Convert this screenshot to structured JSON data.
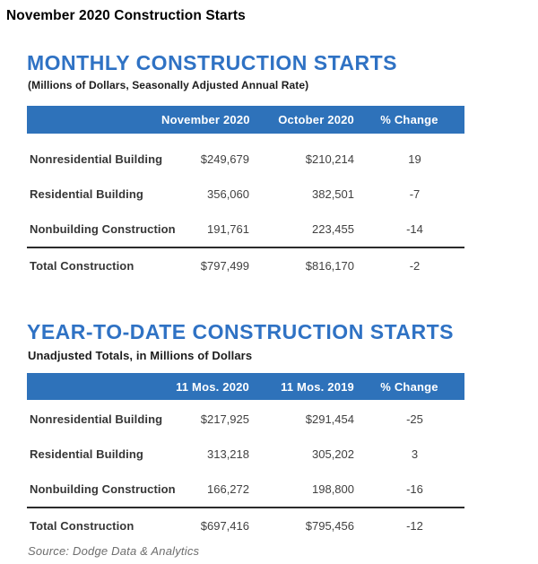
{
  "page": {
    "title": "November 2020 Construction Starts",
    "source": "Source: Dodge Data & Analytics"
  },
  "colors": {
    "heading_blue": "#2f72c4",
    "band_blue": "#2e72ba",
    "body_text": "#3f3f3f"
  },
  "sections": [
    {
      "heading": "MONTHLY CONSTRUCTION STARTS",
      "subheading": "(Millions of Dollars, Seasonally Adjusted Annual Rate)",
      "table": {
        "columns": [
          "",
          "November 2020",
          "October 2020",
          "% Change"
        ],
        "rows": [
          {
            "label": "Nonresidential Building",
            "current": "$249,679",
            "prior": "$210,214",
            "change": "19"
          },
          {
            "label": "Residential Building",
            "current": "356,060",
            "prior": "382,501",
            "change": "-7"
          },
          {
            "label": "Nonbuilding Construction",
            "current": "191,761",
            "prior": "223,455",
            "change": "-14"
          }
        ],
        "total": {
          "label": "Total Construction",
          "current": "$797,499",
          "prior": "$816,170",
          "change": "-2"
        }
      }
    },
    {
      "heading": "YEAR-TO-DATE CONSTRUCTION STARTS",
      "subheading": "Unadjusted Totals, in Millions of Dollars",
      "table": {
        "columns": [
          "",
          "11 Mos. 2020",
          "11 Mos. 2019",
          "% Change"
        ],
        "rows": [
          {
            "label": "Nonresidential Building",
            "current": "$217,925",
            "prior": "$291,454",
            "change": "-25"
          },
          {
            "label": "Residential Building",
            "current": "313,218",
            "prior": "305,202",
            "change": "3"
          },
          {
            "label": "Nonbuilding Construction",
            "current": "166,272",
            "prior": "198,800",
            "change": "-16"
          }
        ],
        "total": {
          "label": "Total Construction",
          "current": "$697,416",
          "prior": "$795,456",
          "change": "-12"
        }
      }
    }
  ]
}
